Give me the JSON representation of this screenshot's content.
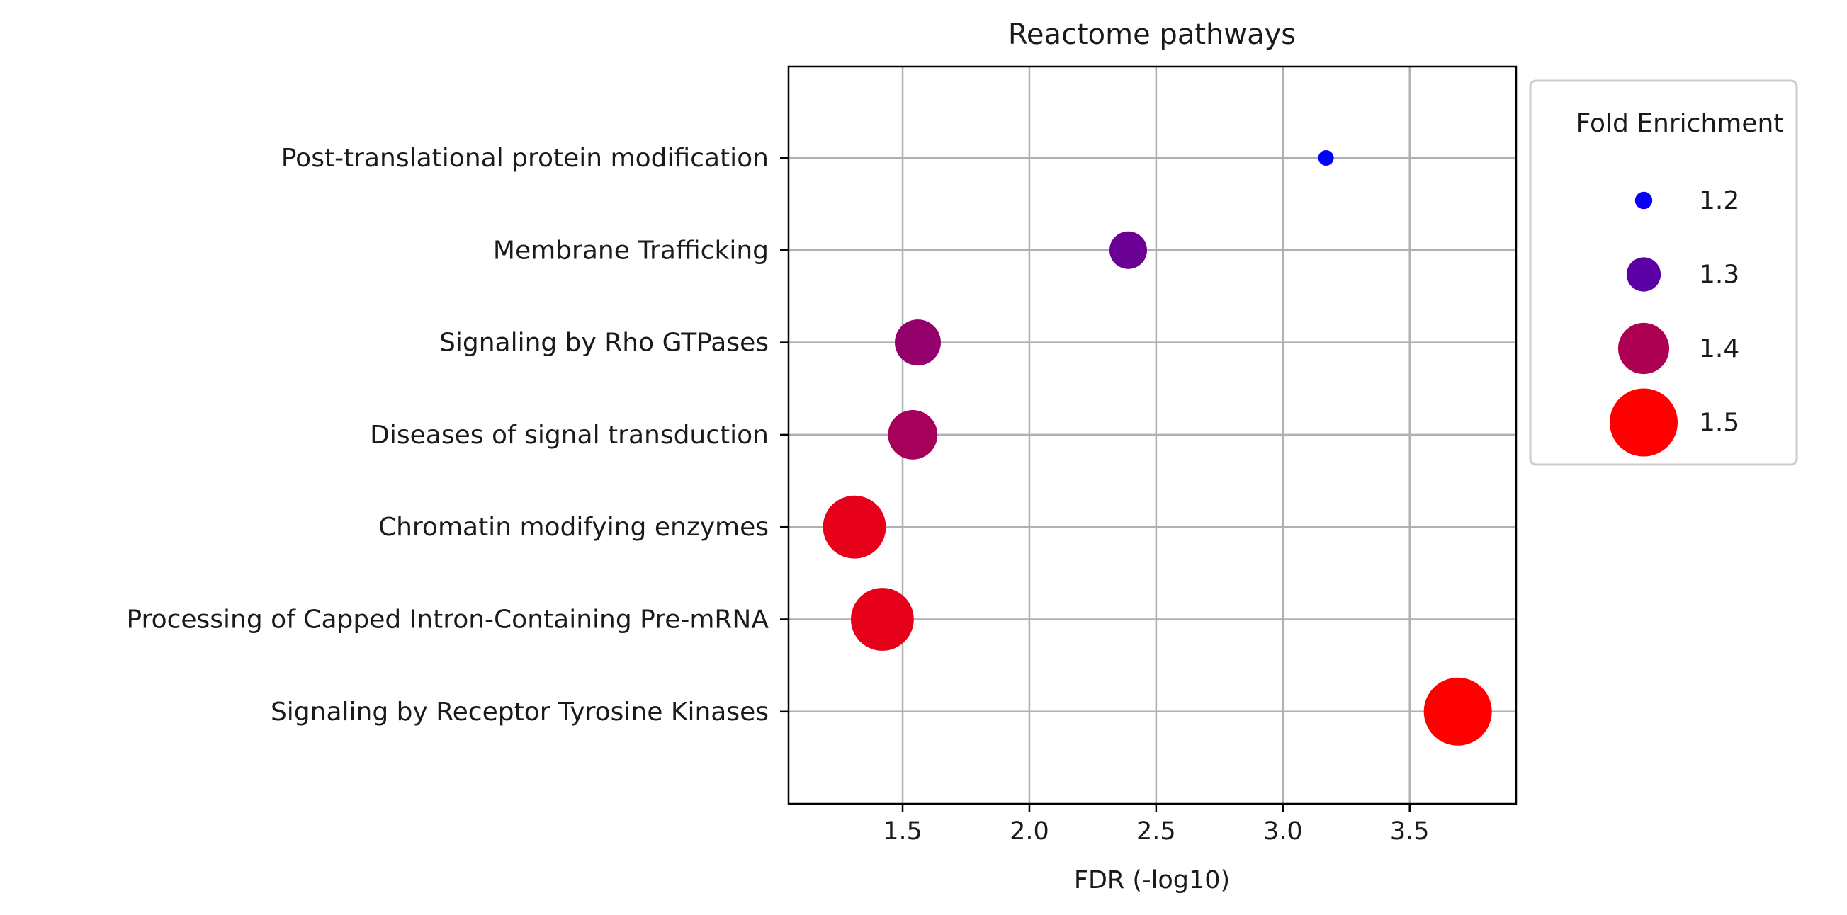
{
  "chart_data": {
    "type": "scatter",
    "title": "Reactome pathways",
    "xlabel": "FDR (-log10)",
    "ylabel": "",
    "xlim": [
      1.05,
      3.92
    ],
    "x_ticks": [
      "1.5",
      "2.0",
      "2.5",
      "3.0",
      "3.5"
    ],
    "grid": true,
    "categories": [
      "Post-translational protein modification",
      "Membrane Trafficking",
      "Signaling by Rho GTPases",
      "Diseases of signal transduction",
      "Chromatin modifying enzymes",
      "Processing of Capped Intron-Containing Pre-mRNA",
      "Signaling by Receptor Tyrosine Kinases"
    ],
    "points": [
      {
        "category": "Post-translational protein modification",
        "x": 3.17,
        "fold_enrichment": 1.19
      },
      {
        "category": "Membrane Trafficking",
        "x": 2.39,
        "fold_enrichment": 1.32
      },
      {
        "category": "Signaling by Rho GTPases",
        "x": 1.56,
        "fold_enrichment": 1.37
      },
      {
        "category": "Diseases of signal transduction",
        "x": 1.54,
        "fold_enrichment": 1.39
      },
      {
        "category": "Chromatin modifying enzymes",
        "x": 1.31,
        "fold_enrichment": 1.47
      },
      {
        "category": "Processing of Capped Intron-Containing Pre-mRNA",
        "x": 1.42,
        "fold_enrichment": 1.47
      },
      {
        "category": "Signaling by Receptor Tyrosine Kinases",
        "x": 3.69,
        "fold_enrichment": 1.5
      }
    ],
    "legend": {
      "title": "Fold Enrichment",
      "placement": "outside-right",
      "entries": [
        {
          "label": "1.2",
          "value": 1.2
        },
        {
          "label": "1.3",
          "value": 1.3
        },
        {
          "label": "1.4",
          "value": 1.4
        },
        {
          "label": "1.5",
          "value": 1.5
        }
      ]
    },
    "color_scale": {
      "low": "#0000ff",
      "high": "#ff0000",
      "domain": [
        1.19,
        1.5
      ]
    },
    "colors": {
      "grid": "#b0b0b0",
      "axes": "#000000",
      "legend_border": "#cccccc"
    }
  }
}
